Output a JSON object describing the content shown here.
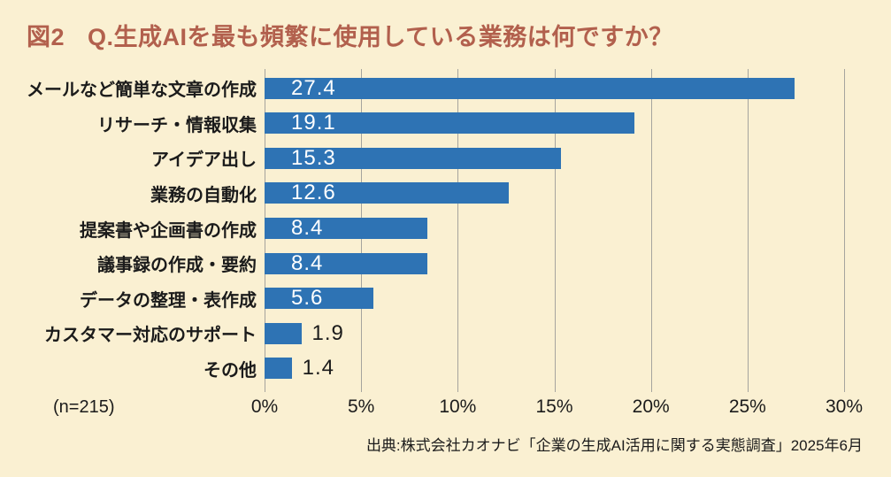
{
  "figure": {
    "label": "図2",
    "title": "Q.生成AIを最も頻繁に使用している業務は何ですか？"
  },
  "chart_data": {
    "type": "bar",
    "orientation": "horizontal",
    "title": "Q.生成AIを最も頻繁に使用している業務は何ですか？",
    "categories": [
      "メールなど簡単な文章の作成",
      "リサーチ・情報収集",
      "アイデア出し",
      "業務の自動化",
      "提案書や企画書の作成",
      "議事録の作成・要約",
      "データの整理・表作成",
      "カスタマー対応のサポート",
      "その他"
    ],
    "values": [
      27.4,
      19.1,
      15.3,
      12.6,
      8.4,
      8.4,
      5.6,
      1.9,
      1.4
    ],
    "value_labels": [
      "27.4",
      "19.1",
      "15.3",
      "12.6",
      "8.4",
      "8.4",
      "5.6",
      "1.9",
      "1.4"
    ],
    "x_ticks": [
      "0%",
      "5%",
      "10%",
      "15%",
      "20%",
      "25%",
      "30%"
    ],
    "xlim": [
      0,
      30
    ],
    "grid": true,
    "legend": "none",
    "bar_color": "#2e73b4",
    "gridline_color": "#a5a49e",
    "value_label_inside_color": "#ffffff",
    "value_label_outside_color": "#1b1b1b"
  },
  "footer": {
    "sample_size": "(n=215)",
    "source": "出典:株式会社カオナビ「企業の生成AI活用に関する実態調査」2025年6月"
  },
  "colors": {
    "background": "#faf0d2",
    "title": "#b2604d",
    "text": "#1b1b1b"
  }
}
